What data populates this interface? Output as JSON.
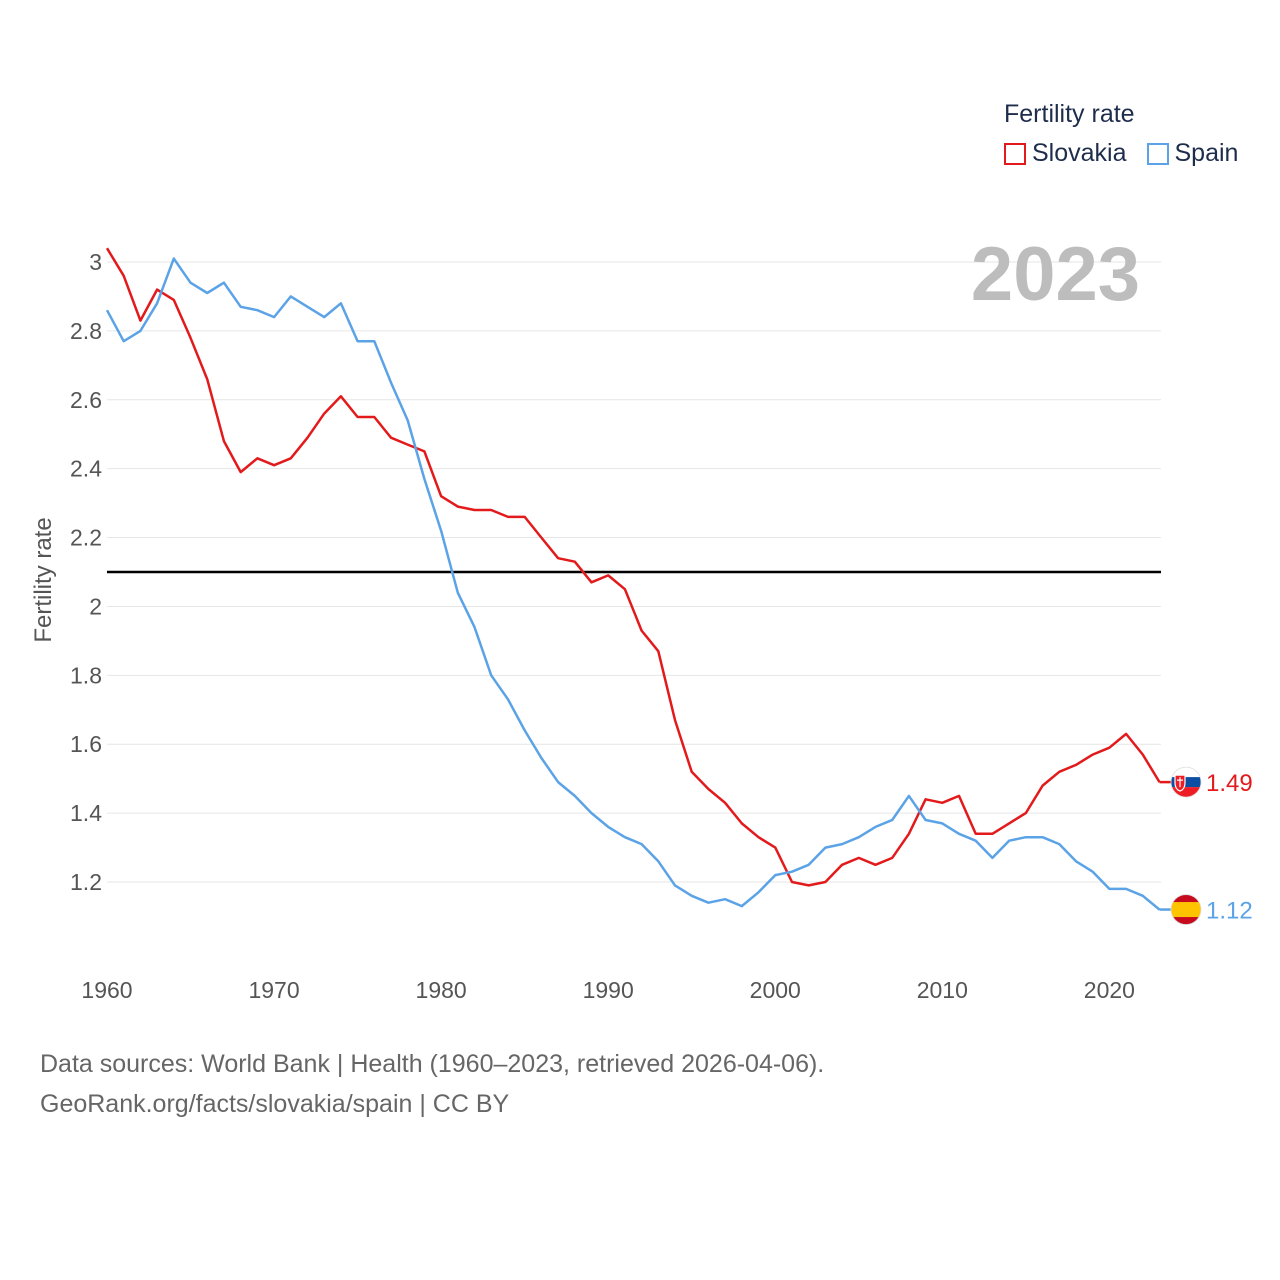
{
  "legend": {
    "title": "Fertility rate"
  },
  "footer": {
    "line1": "Data sources: World Bank | Health (1960–2023, retrieved 2026-04-06).",
    "line2": "GeoRank.org/facts/slovakia/spain | CC BY"
  },
  "chart_data": {
    "type": "line",
    "title": "",
    "year_badge": "2023",
    "xlabel": "",
    "ylabel": "Fertility rate",
    "xlim": [
      1960,
      2023
    ],
    "ylim": [
      1.05,
      3.1
    ],
    "x_ticks": [
      1960,
      1970,
      1980,
      1990,
      2000,
      2010,
      2020
    ],
    "y_ticks": [
      1.2,
      1.4,
      1.6,
      1.8,
      2,
      2.2,
      2.4,
      2.6,
      2.8,
      3
    ],
    "grid": true,
    "legend_position": "top-right",
    "reference_line": {
      "y": 2.1,
      "color": "#000000"
    },
    "x": [
      1960,
      1961,
      1962,
      1963,
      1964,
      1965,
      1966,
      1967,
      1968,
      1969,
      1970,
      1971,
      1972,
      1973,
      1974,
      1975,
      1976,
      1977,
      1978,
      1979,
      1980,
      1981,
      1982,
      1983,
      1984,
      1985,
      1986,
      1987,
      1988,
      1989,
      1990,
      1991,
      1992,
      1993,
      1994,
      1995,
      1996,
      1997,
      1998,
      1999,
      2000,
      2001,
      2002,
      2003,
      2004,
      2005,
      2006,
      2007,
      2008,
      2009,
      2010,
      2011,
      2012,
      2013,
      2014,
      2015,
      2016,
      2017,
      2018,
      2019,
      2020,
      2021,
      2022,
      2023
    ],
    "series": [
      {
        "name": "Slovakia",
        "color": "#e31a1c",
        "flag": "slovakia-flag-icon",
        "end_label": "1.49",
        "values": [
          3.04,
          2.96,
          2.83,
          2.92,
          2.89,
          2.78,
          2.66,
          2.48,
          2.39,
          2.43,
          2.41,
          2.43,
          2.49,
          2.56,
          2.61,
          2.55,
          2.55,
          2.49,
          2.47,
          2.45,
          2.32,
          2.29,
          2.28,
          2.28,
          2.26,
          2.26,
          2.2,
          2.14,
          2.13,
          2.07,
          2.09,
          2.05,
          1.93,
          1.87,
          1.67,
          1.52,
          1.47,
          1.43,
          1.37,
          1.33,
          1.3,
          1.2,
          1.19,
          1.2,
          1.25,
          1.27,
          1.25,
          1.27,
          1.34,
          1.44,
          1.43,
          1.45,
          1.34,
          1.34,
          1.37,
          1.4,
          1.48,
          1.52,
          1.54,
          1.57,
          1.59,
          1.63,
          1.57,
          1.49
        ]
      },
      {
        "name": "Spain",
        "color": "#5ba3e6",
        "flag": "spain-flag-icon",
        "end_label": "1.12",
        "values": [
          2.86,
          2.77,
          2.8,
          2.88,
          3.01,
          2.94,
          2.91,
          2.94,
          2.87,
          2.86,
          2.84,
          2.9,
          2.87,
          2.84,
          2.88,
          2.77,
          2.77,
          2.65,
          2.54,
          2.37,
          2.22,
          2.04,
          1.94,
          1.8,
          1.73,
          1.64,
          1.56,
          1.49,
          1.45,
          1.4,
          1.36,
          1.33,
          1.31,
          1.26,
          1.19,
          1.16,
          1.14,
          1.15,
          1.13,
          1.17,
          1.22,
          1.23,
          1.25,
          1.3,
          1.31,
          1.33,
          1.36,
          1.38,
          1.45,
          1.38,
          1.37,
          1.34,
          1.32,
          1.27,
          1.32,
          1.33,
          1.33,
          1.31,
          1.26,
          1.23,
          1.18,
          1.18,
          1.16,
          1.12
        ]
      }
    ]
  }
}
